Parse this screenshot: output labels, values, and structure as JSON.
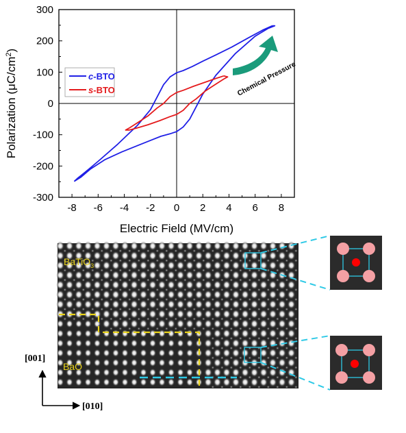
{
  "chart_data": {
    "type": "line",
    "xlabel": "Electric Field (MV/cm)",
    "ylabel_main": "Polarization (μC/cm",
    "ylabel_sup": "2",
    "ylabel_close": ")",
    "xlim": [
      -9,
      9
    ],
    "ylim": [
      -300,
      300
    ],
    "xticks": [
      -8,
      -6,
      -4,
      -2,
      0,
      2,
      4,
      6,
      8
    ],
    "yticks": [
      300,
      200,
      100,
      0,
      -100,
      -200,
      -300
    ],
    "legend_position": "upper-left",
    "grid": false,
    "series": [
      {
        "name_prefix": "c",
        "name_suffix": "-BTO",
        "color": "#1f1fe6",
        "x": [
          7.3,
          6.6,
          5.5,
          4.2,
          3.0,
          2.0,
          1.2,
          0.5,
          0.0,
          -0.5,
          -1.0,
          -1.5,
          -2.0,
          -3.0,
          -4.5,
          -6.0,
          -7.0,
          -7.6,
          -7.8,
          -7.3,
          -6.6,
          -5.5,
          -4.2,
          -3.0,
          -2.0,
          -1.2,
          -0.5,
          0.0,
          0.5,
          1.0,
          1.5,
          2.0,
          3.0,
          4.5,
          6.0,
          7.0,
          7.5,
          7.3
        ],
        "y": [
          248,
          235,
          210,
          180,
          155,
          135,
          118,
          105,
          98,
          85,
          60,
          20,
          -20,
          -70,
          -130,
          -185,
          -220,
          -240,
          -248,
          -235,
          -210,
          -180,
          -155,
          -135,
          -118,
          -105,
          -97,
          -90,
          -75,
          -50,
          -10,
          30,
          90,
          160,
          215,
          240,
          248,
          248
        ]
      },
      {
        "name_prefix": "s",
        "name_suffix": "-BTO",
        "color": "#e41a1c",
        "x": [
          3.6,
          3.0,
          2.2,
          1.3,
          0.5,
          0.0,
          -0.5,
          -1.0,
          -1.5,
          -2.2,
          -3.0,
          -3.6,
          -3.9,
          -3.6,
          -3.0,
          -2.2,
          -1.3,
          -0.5,
          0.0,
          0.5,
          1.0,
          1.5,
          2.2,
          3.0,
          3.6,
          3.9,
          3.6
        ],
        "y": [
          88,
          80,
          68,
          55,
          42,
          35,
          22,
          0,
          -15,
          -40,
          -62,
          -78,
          -85,
          -85,
          -78,
          -68,
          -55,
          -42,
          -35,
          -22,
          0,
          15,
          40,
          62,
          78,
          85,
          88
        ]
      }
    ],
    "annotation": "Chemical Pressure"
  },
  "stem": {
    "label_top_html": "BaTiO<sub>3</sub>",
    "label_top_main": "BaTiO",
    "label_top_sub": "3",
    "label_bottom": "BaO",
    "axis_vertical": "[001]",
    "axis_horizontal": "[010]"
  },
  "colors": {
    "c_bto": "#1f1fe6",
    "s_bto": "#e41a1c",
    "arrow": "#1a9b7b",
    "boundary": "#e8d21a",
    "guide": "#2ec9e6",
    "inset_atom_corner": "#f4a0a4",
    "inset_atom_center": "#ff0000"
  }
}
